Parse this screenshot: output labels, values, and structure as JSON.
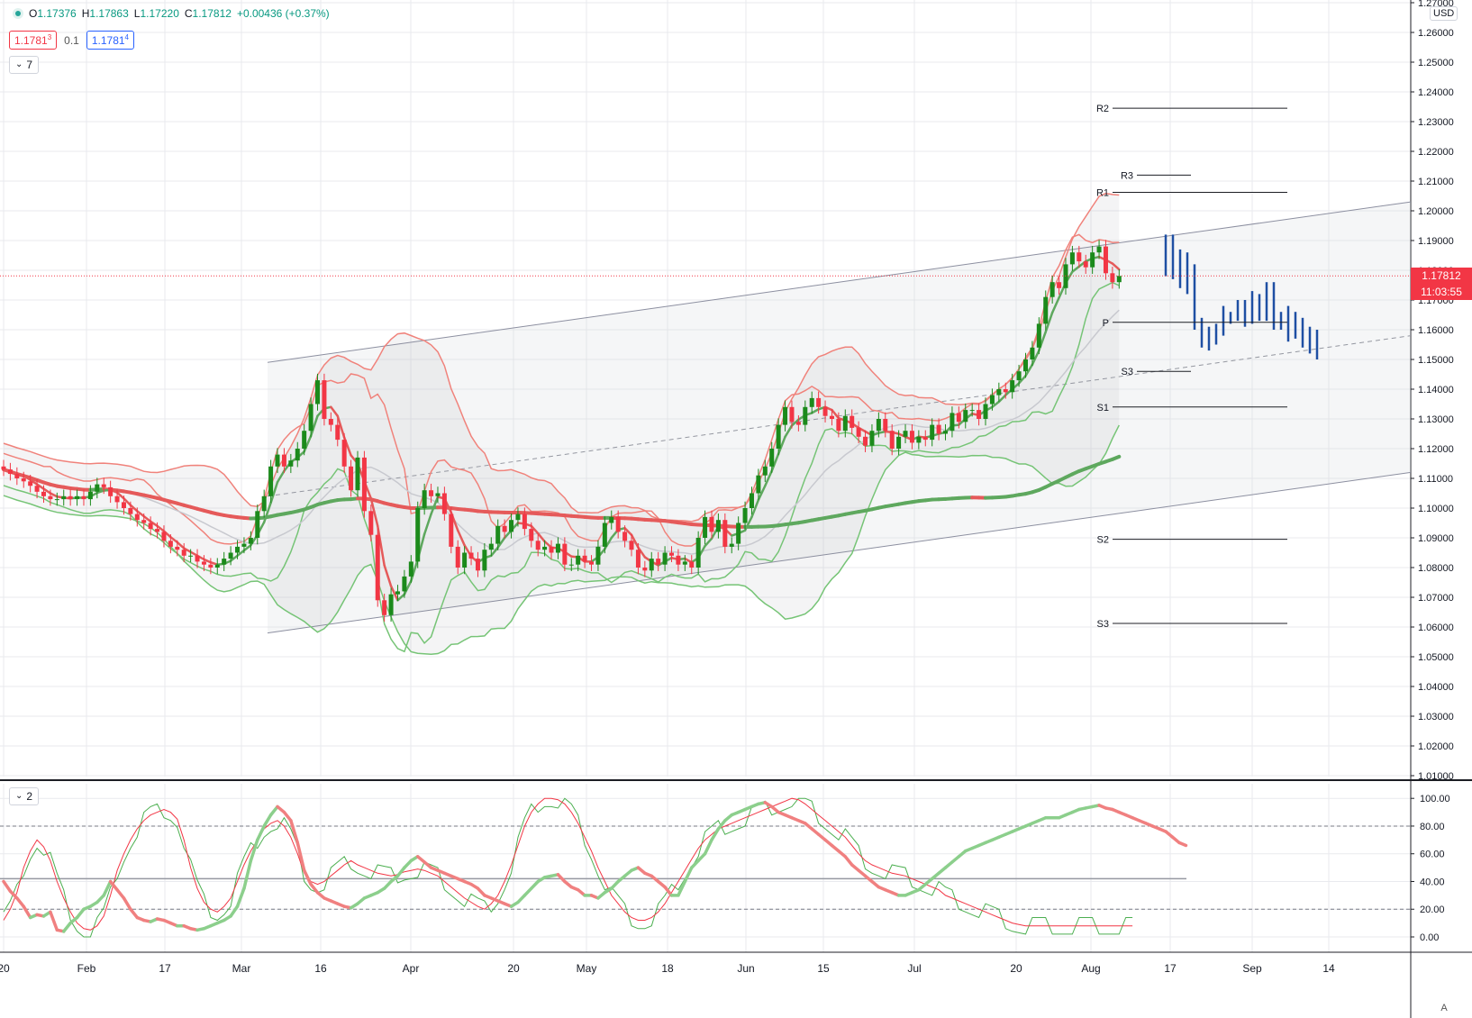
{
  "header": {
    "open_label": "O",
    "open": "1.17376",
    "high_label": "H",
    "high": "1.17863",
    "low_label": "L",
    "low": "1.17220",
    "close_label": "C",
    "close": "1.17812",
    "change": "+0.00436 (+0.37%)"
  },
  "quotes": {
    "sell": "1.1781",
    "sell_sup": "3",
    "spread": "0.1",
    "buy": "1.1781",
    "buy_sup": "4"
  },
  "main_pane": {
    "collapse_count": "7",
    "currency": "USD",
    "last_price": "1.17812",
    "countdown": "11:03:55"
  },
  "osc_pane": {
    "collapse_count": "2"
  },
  "auto_button": "A",
  "colors": {
    "up": "#1b8a1b",
    "down": "#f23645",
    "upper_band": "#f0827b",
    "lower_band": "#76c476",
    "forecast": "#1e4fa3",
    "ma_fast_red": "#e55a5a",
    "ma_fast_green": "#5ea85e"
  },
  "chart_data": [
    {
      "type": "candlestick",
      "price_axis": [
        "1.27000",
        "1.26000",
        "1.25000",
        "1.24000",
        "1.23000",
        "1.22000",
        "1.21000",
        "1.20000",
        "1.19000",
        "1.18000",
        "1.17000",
        "1.16000",
        "1.15000",
        "1.14000",
        "1.13000",
        "1.12000",
        "1.11000",
        "1.10000",
        "1.09000",
        "1.08000",
        "1.07000",
        "1.06000",
        "1.05000",
        "1.04000",
        "1.03000",
        "1.02000",
        "1.01000"
      ],
      "ylim": [
        1.01,
        1.27
      ],
      "x_tick_labels": [
        "20",
        "Feb",
        "17",
        "Mar",
        "16",
        "Apr",
        "20",
        "May",
        "18",
        "Jun",
        "15",
        "Jul",
        "20",
        "Aug",
        "17",
        "Sep",
        "14"
      ],
      "close": [
        1.113,
        1.1115,
        1.11,
        1.109,
        1.1075,
        1.1055,
        1.104,
        1.103,
        1.103,
        1.104,
        1.103,
        1.104,
        1.103,
        1.1055,
        1.108,
        1.107,
        1.104,
        1.102,
        1.1,
        1.098,
        1.096,
        1.095,
        1.093,
        1.092,
        1.089,
        1.087,
        1.086,
        1.084,
        1.084,
        1.082,
        1.081,
        1.08,
        1.081,
        1.083,
        1.085,
        1.087,
        1.088,
        1.09,
        1.099,
        1.104,
        1.114,
        1.118,
        1.114,
        1.116,
        1.12,
        1.126,
        1.135,
        1.143,
        1.13,
        1.128,
        1.123,
        1.114,
        1.106,
        1.117,
        1.099,
        1.091,
        1.069,
        1.064,
        1.071,
        1.072,
        1.077,
        1.082,
        1.1,
        1.106,
        1.104,
        1.105,
        1.098,
        1.087,
        1.08,
        1.085,
        1.083,
        1.079,
        1.086,
        1.088,
        1.094,
        1.092,
        1.096,
        1.098,
        1.093,
        1.089,
        1.086,
        1.087,
        1.085,
        1.088,
        1.081,
        1.081,
        1.084,
        1.082,
        1.081,
        1.087,
        1.095,
        1.097,
        1.092,
        1.089,
        1.086,
        1.08,
        1.079,
        1.083,
        1.081,
        1.085,
        1.084,
        1.081,
        1.082,
        1.08,
        1.09,
        1.097,
        1.092,
        1.096,
        1.087,
        1.088,
        1.095,
        1.1,
        1.105,
        1.111,
        1.114,
        1.12,
        1.128,
        1.134,
        1.129,
        1.128,
        1.134,
        1.137,
        1.134,
        1.131,
        1.13,
        1.126,
        1.131,
        1.127,
        1.124,
        1.121,
        1.126,
        1.13,
        1.126,
        1.12,
        1.124,
        1.126,
        1.122,
        1.124,
        1.123,
        1.128,
        1.125,
        1.126,
        1.132,
        1.129,
        1.133,
        1.133,
        1.13,
        1.135,
        1.138,
        1.14,
        1.139,
        1.143,
        1.146,
        1.15,
        1.154,
        1.162,
        1.171,
        1.176,
        1.174,
        1.182,
        1.186,
        1.183,
        1.181,
        1.186,
        1.188,
        1.179,
        1.176,
        1.1781
      ],
      "forecast_bars": [
        [
          1.192,
          1.178
        ],
        [
          1.192,
          1.177
        ],
        [
          1.187,
          1.174
        ],
        [
          1.186,
          1.172
        ],
        [
          1.182,
          1.16
        ],
        [
          1.164,
          1.154
        ],
        [
          1.161,
          1.153
        ],
        [
          1.162,
          1.155
        ],
        [
          1.168,
          1.158
        ],
        [
          1.166,
          1.162
        ],
        [
          1.17,
          1.163
        ],
        [
          1.17,
          1.161
        ],
        [
          1.173,
          1.162
        ],
        [
          1.172,
          1.163
        ],
        [
          1.176,
          1.163
        ],
        [
          1.176,
          1.16
        ],
        [
          1.166,
          1.16
        ],
        [
          1.168,
          1.156
        ],
        [
          1.166,
          1.157
        ],
        [
          1.164,
          1.154
        ],
        [
          1.161,
          1.152
        ],
        [
          1.16,
          1.15
        ]
      ],
      "pivots": [
        {
          "label": "R2",
          "price": 1.2345
        },
        {
          "label": "R3",
          "price": 1.212
        },
        {
          "label": "R1",
          "price": 1.2062
        },
        {
          "label": "P",
          "price": 1.1625
        },
        {
          "label": "S3",
          "price": 1.146
        },
        {
          "label": "S1",
          "price": 1.134
        },
        {
          "label": "S2",
          "price": 1.0895
        },
        {
          "label": "S3",
          "price": 1.0612
        }
      ],
      "channel": {
        "upper": [
          [
            1.149
          ],
          [
            1.203
          ]
        ],
        "lower": [
          [
            1.058
          ],
          [
            1.112
          ]
        ],
        "mid": [
          [
            1.104
          ],
          [
            1.158
          ]
        ]
      }
    },
    {
      "type": "line",
      "title": "",
      "y_tick_labels": [
        "100.00",
        "80.00",
        "60.00",
        "40.00",
        "20.00",
        "0.00"
      ],
      "ylim": [
        0,
        100
      ],
      "levels": [
        80,
        42,
        20
      ],
      "series": [
        {
          "values": [
            40,
            33,
            28,
            22,
            14,
            16,
            15,
            18,
            5,
            4,
            10,
            14,
            20,
            22,
            25,
            30,
            40,
            34,
            28,
            20,
            14,
            12,
            11,
            13,
            12,
            10,
            8,
            8,
            6,
            5,
            6,
            8,
            10,
            12,
            15,
            22,
            35,
            55,
            70,
            80,
            88,
            94,
            90,
            84,
            68,
            48,
            38,
            32,
            28,
            26,
            24,
            22,
            21,
            24,
            28,
            30,
            32,
            35,
            40,
            44,
            50,
            55,
            58,
            54,
            50,
            48,
            46,
            44,
            42,
            40,
            38,
            35,
            30,
            28,
            26,
            24,
            22,
            25,
            30,
            35,
            40,
            43,
            44,
            45,
            40,
            36,
            34,
            30,
            30,
            28,
            32,
            35,
            40,
            44,
            48,
            50,
            46,
            44,
            40,
            36,
            30,
            30,
            40,
            50,
            55,
            60,
            70,
            78,
            84,
            88,
            90,
            92,
            94,
            96,
            97,
            94,
            90,
            88,
            86,
            84,
            82,
            78,
            74,
            70,
            66,
            62,
            58,
            52,
            48,
            44,
            40,
            36,
            34,
            32,
            30,
            30,
            32,
            34,
            38,
            42,
            46,
            50,
            54,
            58,
            62,
            64,
            66,
            68,
            70,
            72,
            74,
            76,
            78,
            80,
            82,
            84,
            86,
            86,
            86,
            88,
            90,
            92,
            93,
            94,
            95,
            93,
            92,
            90,
            88,
            86,
            84,
            82,
            80,
            78,
            76,
            72,
            68,
            66
          ]
        },
        {
          "values": [
            12,
            20,
            32,
            50,
            62,
            70,
            65,
            55,
            40,
            28,
            18,
            10,
            6,
            5,
            8,
            15,
            30,
            48,
            60,
            70,
            78,
            84,
            88,
            90,
            92,
            90,
            85,
            70,
            50,
            35,
            25,
            20,
            18,
            22,
            28,
            40,
            52,
            62,
            70,
            78,
            82,
            84,
            80,
            72,
            60,
            46,
            40,
            38,
            40,
            44,
            48,
            52,
            55,
            52,
            50,
            48,
            46,
            45,
            44,
            45,
            47,
            48,
            49,
            48,
            46,
            44,
            40,
            36,
            32,
            28,
            25,
            22,
            20,
            24,
            30,
            40,
            52,
            66,
            80,
            90,
            96,
            100,
            100,
            99,
            96,
            90,
            82,
            72,
            62,
            50,
            40,
            30,
            24,
            18,
            14,
            12,
            12,
            14,
            18,
            24,
            32,
            40,
            48,
            56,
            64,
            70,
            74,
            78,
            80,
            82,
            84,
            86,
            88,
            90,
            92,
            94,
            96,
            98,
            100,
            99,
            96,
            92,
            88,
            84,
            80,
            76,
            72,
            66,
            60,
            55,
            52,
            50,
            48,
            46,
            45,
            44,
            42,
            40,
            38,
            36,
            34,
            30,
            28,
            26,
            24,
            22,
            20,
            18,
            16,
            14,
            12,
            10,
            9,
            8,
            8,
            8,
            8,
            8,
            8,
            8,
            8,
            8,
            8,
            8,
            8,
            8,
            8,
            8,
            8,
            8
          ]
        }
      ]
    }
  ]
}
